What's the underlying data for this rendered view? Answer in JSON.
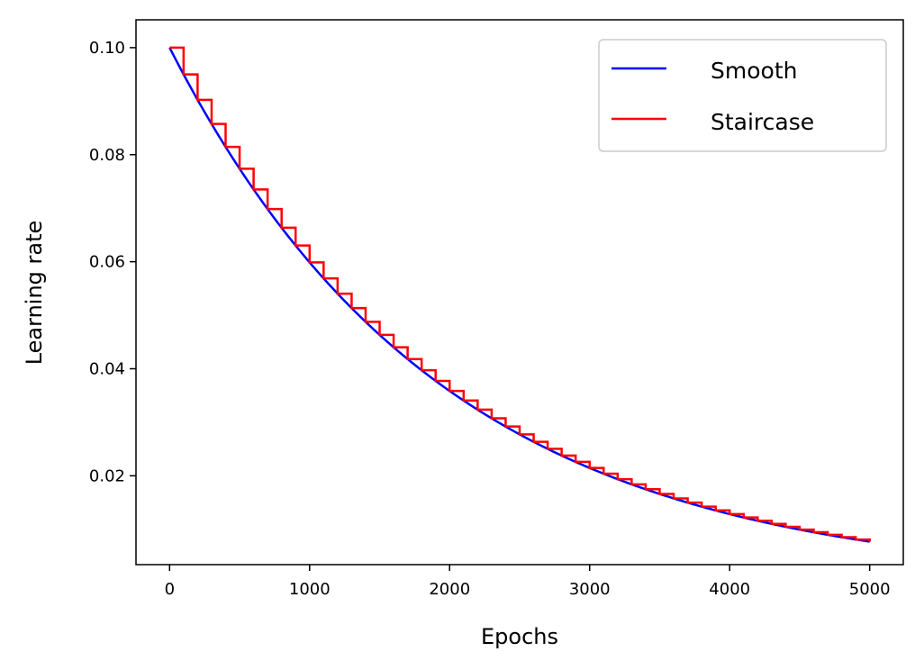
{
  "chart_data": {
    "type": "line",
    "title": "",
    "xlabel": "Epochs",
    "ylabel": "Learning rate",
    "xlim": [
      -240,
      5240
    ],
    "ylim": [
      0.0034,
      0.1052
    ],
    "xticks": [
      0,
      1000,
      2000,
      3000,
      4000,
      5000
    ],
    "yticks": [
      0.02,
      0.04,
      0.06,
      0.08,
      0.1
    ],
    "xtick_labels": [
      "0",
      "1000",
      "2000",
      "3000",
      "4000",
      "5000"
    ],
    "ytick_labels": [
      "0.02",
      "0.04",
      "0.06",
      "0.08",
      "0.10"
    ],
    "grid": false,
    "legend_position": "upper right",
    "initial_lr": 0.1,
    "decay_rate": 0.95,
    "decay_steps": 100,
    "max_epoch": 5000,
    "series": [
      {
        "name": "Smooth",
        "kind": "smooth",
        "color": "#0000ff"
      },
      {
        "name": "Staircase",
        "kind": "staircase",
        "color": "#ff0000"
      }
    ]
  }
}
